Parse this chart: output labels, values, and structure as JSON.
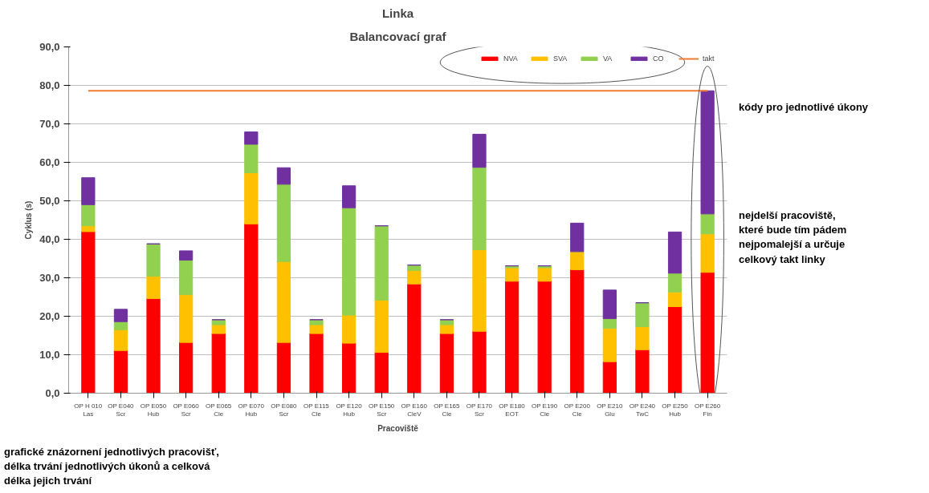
{
  "chart_data": {
    "type": "bar",
    "title": "Linka",
    "subtitle": "Balancovací graf",
    "xlabel": "Pracoviště",
    "ylabel": "Cyklus (s)",
    "categories": [
      "OP H 010\nLas",
      "OP E040\nScr",
      "OP E050\nHub",
      "OP E060\nScr",
      "OP E065\nCle",
      "OP E070\nHub",
      "OP E080\nScr",
      "OP E115\nCle",
      "OP E120\nHub",
      "OP E150\nScr",
      "OP E160\nCleV",
      "OP E165\nCle",
      "OP E170\nScr",
      "OP E180\nEOT",
      "OP E190\nCle",
      "OP E200\nCle",
      "OP E210\nGlu",
      "OP E240\nTwC",
      "OP E250\nHub",
      "OP E260\nFin"
    ],
    "stacked": true,
    "series": [
      {
        "name": "NVA",
        "color": "#ff0000",
        "values": [
          42,
          11.1,
          24.6,
          13.2,
          15.5,
          44,
          13.2,
          15.5,
          13,
          10.6,
          28.4,
          15.5,
          16.1,
          29.1,
          29.1,
          32.1,
          8.2,
          11.3,
          22.5,
          31.4
        ]
      },
      {
        "name": "SVA",
        "color": "#ffc000",
        "values": [
          1.5,
          5.4,
          5.8,
          12.4,
          2.3,
          13.3,
          21,
          2.3,
          7.3,
          13.6,
          3.5,
          2.3,
          21.2,
          3.5,
          3.5,
          4.7,
          8.7,
          6,
          3.8,
          10
        ]
      },
      {
        "name": "VA",
        "color": "#92d050",
        "values": [
          5.5,
          2.1,
          8.4,
          9,
          1.3,
          7.4,
          20.1,
          1.3,
          27.9,
          19.3,
          1.4,
          1.3,
          21.4,
          0.5,
          0.5,
          0,
          2.5,
          6.2,
          4.9,
          5.2
        ]
      },
      {
        "name": "CO",
        "color": "#7030a0",
        "values": [
          7,
          3.2,
          0,
          2.4,
          0,
          3.2,
          4.3,
          0,
          5.7,
          0,
          0,
          0,
          8.6,
          0,
          0,
          7.4,
          7.4,
          0,
          10.7,
          32
        ]
      },
      {
        "name": "takt",
        "type": "line",
        "color": "#ed7d31",
        "values": [
          78.6,
          78.6,
          78.6,
          78.6,
          78.6,
          78.6,
          78.6,
          78.6,
          78.6,
          78.6,
          78.6,
          78.6,
          78.6,
          78.6,
          78.6,
          78.6,
          78.6,
          78.6,
          78.6,
          78.6
        ]
      }
    ],
    "ylim": [
      0,
      90
    ],
    "yticks": [
      {
        "value": 0,
        "label": "0,0"
      },
      {
        "value": 10,
        "label": "10,0"
      },
      {
        "value": 20,
        "label": "20,0"
      },
      {
        "value": 30,
        "label": "30,0"
      },
      {
        "value": 40,
        "label": "40,0"
      },
      {
        "value": 50,
        "label": "50,0"
      },
      {
        "value": 60,
        "label": "60,0"
      },
      {
        "value": 70,
        "label": "70,0"
      },
      {
        "value": 80,
        "label": "80,0"
      },
      {
        "value": 90,
        "label": "90,0"
      }
    ],
    "grid": "y",
    "legend": "top right",
    "annotations": [
      "kódy pro jednotlivé úkony",
      "nejdelší pracoviště,\nkteré bude tím pádem\nnejpomalejší a určuje\ncelkový takt linky",
      "grafické znázornení jednotlivých pracovišť,\ndélka trvání jednotlivých úkonů a celková\ndélka jejich trvání"
    ]
  }
}
